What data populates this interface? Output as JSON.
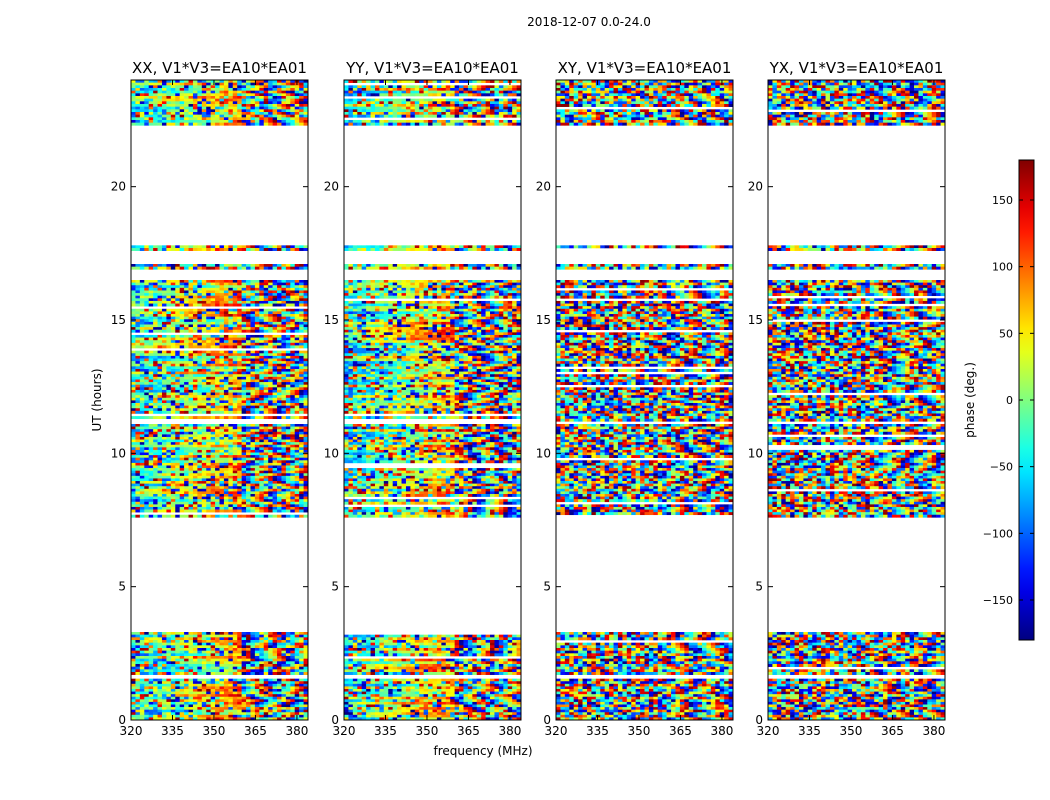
{
  "chart_data": {
    "type": "heatmap",
    "suptitle": "2018-12-07 0.0-24.0",
    "xlabel": "frequency (MHz)",
    "ylabel": "UT (hours)",
    "xlim": [
      320,
      384
    ],
    "ylim": [
      0,
      24
    ],
    "xticks": [
      "320",
      "335",
      "350",
      "365",
      "380"
    ],
    "yticks": [
      "0",
      "5",
      "10",
      "15",
      "20"
    ],
    "panels": [
      {
        "title": "XX, V1*V3=EA10*EA01"
      },
      {
        "title": "YY, V1*V3=EA10*EA01"
      },
      {
        "title": "XY, V1*V3=EA10*EA01"
      },
      {
        "title": "YX, V1*V3=EA10*EA01"
      }
    ],
    "data_intervals_ut_hours": [
      [
        0.0,
        1.55
      ],
      [
        1.7,
        3.3
      ],
      [
        7.6,
        11.1
      ],
      [
        11.2,
        16.5
      ],
      [
        16.9,
        17.1
      ],
      [
        17.6,
        17.8
      ],
      [
        22.3,
        24.0
      ]
    ],
    "colorbar": {
      "label": "phase (deg.)",
      "range": [
        -180,
        180
      ],
      "ticks": [
        "−150",
        "−100",
        "−50",
        "0",
        "50",
        "100",
        "150"
      ],
      "colormap": "jet"
    },
    "grid": false
  }
}
